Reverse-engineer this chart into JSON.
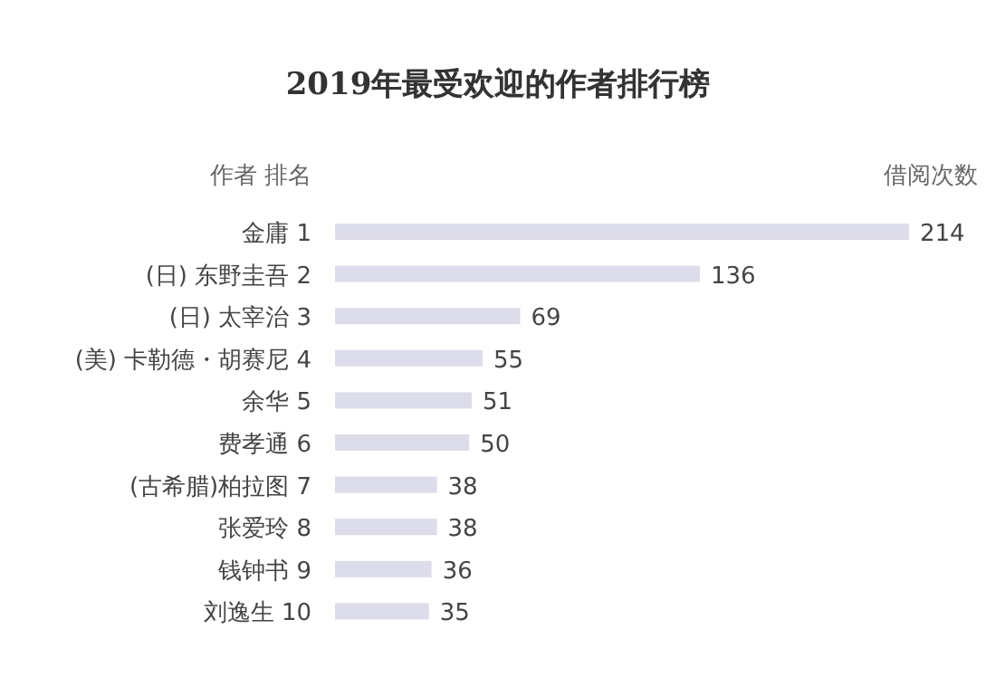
{
  "chart_data": {
    "type": "bar",
    "orientation": "horizontal",
    "title": "2019年最受欢迎的作者排行榜",
    "ylabel": "作者  排名",
    "xlabel": "借阅次数",
    "categories": [
      "金庸  1",
      "(日) 东野圭吾  2",
      "(日) 太宰治  3",
      "(美) 卡勒德・胡赛尼  4",
      "余华  5",
      "费孝通  6",
      "(古希腊)柏拉图  7",
      "张爱玲  8",
      "钱钟书  9",
      "刘逸生  10"
    ],
    "values": [
      214,
      136,
      69,
      55,
      51,
      50,
      38,
      38,
      36,
      35
    ],
    "color": "#dddcea",
    "data_labels": true
  }
}
